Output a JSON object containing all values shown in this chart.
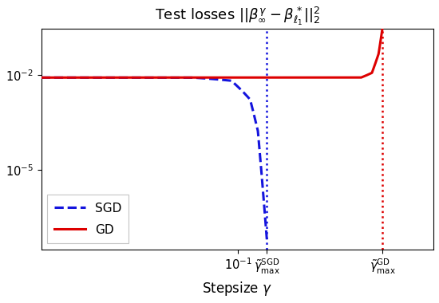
{
  "title": "Test losses $||\\beta_\\infty^\\gamma - \\beta_{\\ell_1}^*||_2^2$",
  "xlabel": "Stepsize $\\gamma$",
  "xlim": [
    0.005,
    1.95
  ],
  "ylim": [
    3e-08,
    0.3
  ],
  "sgd_vline_x": 0.155,
  "gd_vline_x": 0.9,
  "sgd_color": "#1414dd",
  "gd_color": "#dd0000",
  "background_color": "#ffffff",
  "legend_loc": "lower left",
  "flat_level": 0.0085
}
